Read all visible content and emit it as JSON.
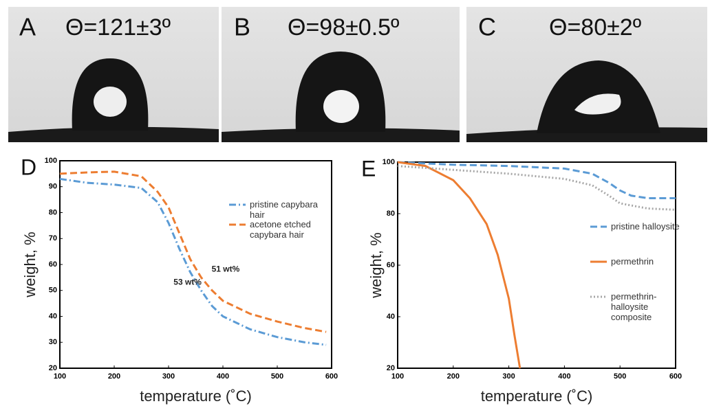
{
  "panels": [
    {
      "letter": "A",
      "angle": "Θ=121±3º"
    },
    {
      "letter": "B",
      "angle": "Θ=98±0.5º"
    },
    {
      "letter": "C",
      "angle": "Θ=80±2º"
    }
  ],
  "chart_data": [
    {
      "type": "line",
      "panel": "D",
      "xlabel": "temperature (˚C)",
      "ylabel": "weight, %",
      "xlim": [
        100,
        600
      ],
      "xticks": [
        100,
        200,
        300,
        400,
        500,
        600
      ],
      "ylim": [
        20,
        100
      ],
      "yticks": [
        20,
        30,
        40,
        50,
        60,
        70,
        80,
        90,
        100
      ],
      "series": [
        {
          "name": "pristine capybara hair",
          "color": "#5b9bd5",
          "dash": "dashdot",
          "x": [
            100,
            150,
            200,
            250,
            280,
            300,
            320,
            340,
            360,
            380,
            400,
            450,
            500,
            550,
            590
          ],
          "values": [
            93,
            91.5,
            90.8,
            89.5,
            84,
            76,
            66,
            57,
            50,
            44,
            40,
            35,
            32,
            30,
            29
          ]
        },
        {
          "name": "acetone etched capybara hair",
          "color": "#ed7d31",
          "dash": "dashed",
          "x": [
            100,
            150,
            200,
            250,
            280,
            300,
            320,
            340,
            360,
            380,
            400,
            450,
            500,
            550,
            590
          ],
          "values": [
            95,
            95.5,
            95.8,
            94,
            88,
            82,
            72,
            62,
            55,
            50,
            46,
            41,
            38,
            35.5,
            34
          ]
        }
      ],
      "annotations": [
        {
          "text": "53 wt%",
          "x": 335,
          "y": 53
        },
        {
          "text": "51 wt%",
          "x": 405,
          "y": 58
        }
      ]
    },
    {
      "type": "line",
      "panel": "E",
      "xlabel": "temperature (˚C)",
      "ylabel": "weight, %",
      "xlim": [
        100,
        600
      ],
      "xticks": [
        100,
        200,
        300,
        400,
        500,
        600
      ],
      "ylim": [
        20,
        100
      ],
      "yticks": [
        20,
        40,
        60,
        80,
        100
      ],
      "series": [
        {
          "name": "pristine halloysite",
          "color": "#5b9bd5",
          "dash": "dashed",
          "x": [
            100,
            200,
            300,
            400,
            450,
            480,
            500,
            520,
            550,
            600
          ],
          "values": [
            100,
            99,
            98.5,
            97.5,
            95.5,
            92,
            89,
            87,
            86,
            86
          ]
        },
        {
          "name": "permethrin",
          "color": "#ed7d31",
          "dash": "solid",
          "x": [
            100,
            150,
            200,
            230,
            260,
            280,
            300,
            310,
            320
          ],
          "values": [
            100,
            98.5,
            93,
            86,
            76,
            64,
            47,
            33,
            20
          ]
        },
        {
          "name": "permethrin-halloysite composite",
          "color": "#a6a6a6",
          "dash": "dotted",
          "x": [
            100,
            200,
            300,
            400,
            450,
            480,
            500,
            550,
            600
          ],
          "values": [
            98.5,
            97,
            95.5,
            93.5,
            91,
            87,
            84,
            82,
            81.5
          ]
        }
      ],
      "annotations": []
    }
  ]
}
